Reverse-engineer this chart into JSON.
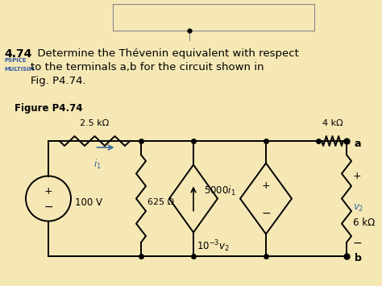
{
  "bg_color": "#f0dfa0",
  "bg_color2": "#f5e9b8",
  "title_bold": "4.74",
  "title_text": "  Determine the Thévenin equivalent with respect",
  "line2_text": "to the terminals a,b for the circuit shown in",
  "line3_text": "Fig. P4.74.",
  "pspice_label": "PSPICE",
  "multisim_label": "MULTISIM",
  "figure_label": "Figure P4.74",
  "resistor_2k5": "2.5 kΩ",
  "resistor_4k": "4 kΩ",
  "resistor_625": "625 Ω",
  "resistor_6k": "6 kΩ",
  "source_100v": "100 V",
  "i1_label": "i₁",
  "v2_label": "v₂",
  "terminal_a": "a",
  "terminal_b": "b",
  "dep_cs_label": "5000i₁",
  "indep_cs_label": "10⁻³v₂"
}
